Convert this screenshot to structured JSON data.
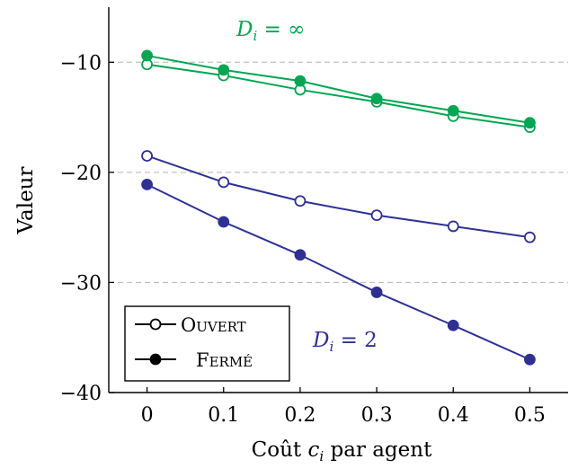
{
  "chart_data": {
    "type": "line",
    "xlabel": "Coût c_i par agent",
    "ylabel": "Valeur",
    "x": [
      0,
      0.1,
      0.2,
      0.3,
      0.4,
      0.5
    ],
    "xticks": [
      "0",
      "0.1",
      "0.2",
      "0.3",
      "0.4",
      "0.5"
    ],
    "yticks": [
      "−10",
      "−20",
      "−30",
      "−40"
    ],
    "ytick_values": [
      -10,
      -20,
      -30,
      -40
    ],
    "xlim": [
      -0.05,
      0.55
    ],
    "ylim": [
      -40,
      -5
    ],
    "grid": "horizontal dashed",
    "legend": {
      "placement": "bottom-left",
      "entries": [
        "Ouvert",
        "Fermé"
      ]
    },
    "annotations": [
      {
        "text": "D_i = ∞",
        "color": "#00a651"
      },
      {
        "text": "D_i = 2",
        "color": "#2e3192"
      }
    ],
    "series": [
      {
        "name": "Ouvert",
        "group": "D_i = ∞",
        "marker": "open",
        "color": "#00a651",
        "values": [
          -10.2,
          -11.2,
          -12.5,
          -13.6,
          -14.9,
          -15.9
        ]
      },
      {
        "name": "Fermé",
        "group": "D_i = ∞",
        "marker": "filled",
        "color": "#00a651",
        "values": [
          -9.4,
          -10.7,
          -11.7,
          -13.3,
          -14.4,
          -15.5
        ]
      },
      {
        "name": "Ouvert",
        "group": "D_i = 2",
        "marker": "open",
        "color": "#2e3192",
        "values": [
          -18.5,
          -20.9,
          -22.6,
          -23.9,
          -24.9,
          -25.9
        ]
      },
      {
        "name": "Fermé",
        "group": "D_i = 2",
        "marker": "filled",
        "color": "#2e3192",
        "values": [
          -21.1,
          -24.5,
          -27.5,
          -30.9,
          -33.9,
          -37.0
        ]
      }
    ]
  }
}
